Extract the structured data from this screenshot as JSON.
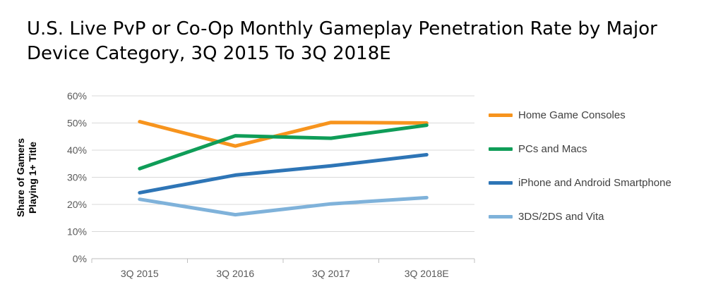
{
  "chart_data": {
    "type": "line",
    "title_lines": [
      "U.S. Live PvP or Co-Op Monthly Gameplay Penetration Rate by Major",
      "Device Category, 3Q 2015 To 3Q 2018E"
    ],
    "ylabel_lines": [
      "Share of Gamers",
      "Playing 1+ Title"
    ],
    "xlabel": "",
    "categories": [
      "3Q 2015",
      "3Q 2016",
      "3Q 2017",
      "3Q 2018E"
    ],
    "ylim": [
      0,
      60
    ],
    "yticks": [
      "0%",
      "10%",
      "20%",
      "30%",
      "40%",
      "50%",
      "60%"
    ],
    "grid": true,
    "legend_position": "right",
    "series": [
      {
        "name": "Home Game Consoles",
        "color": "#F7941D",
        "values": [
          50.5,
          41.5,
          50.2,
          50.0
        ]
      },
      {
        "name": "PCs and Macs",
        "color": "#0F9D58",
        "values": [
          33.2,
          45.3,
          44.4,
          49.2
        ]
      },
      {
        "name": "iPhone and Android Smartphone",
        "color": "#2E75B6",
        "values": [
          24.3,
          30.8,
          34.2,
          38.3
        ]
      },
      {
        "name": "3DS/2DS and Vita",
        "color": "#7FB2DA",
        "values": [
          21.9,
          16.2,
          20.2,
          22.5
        ]
      }
    ]
  }
}
